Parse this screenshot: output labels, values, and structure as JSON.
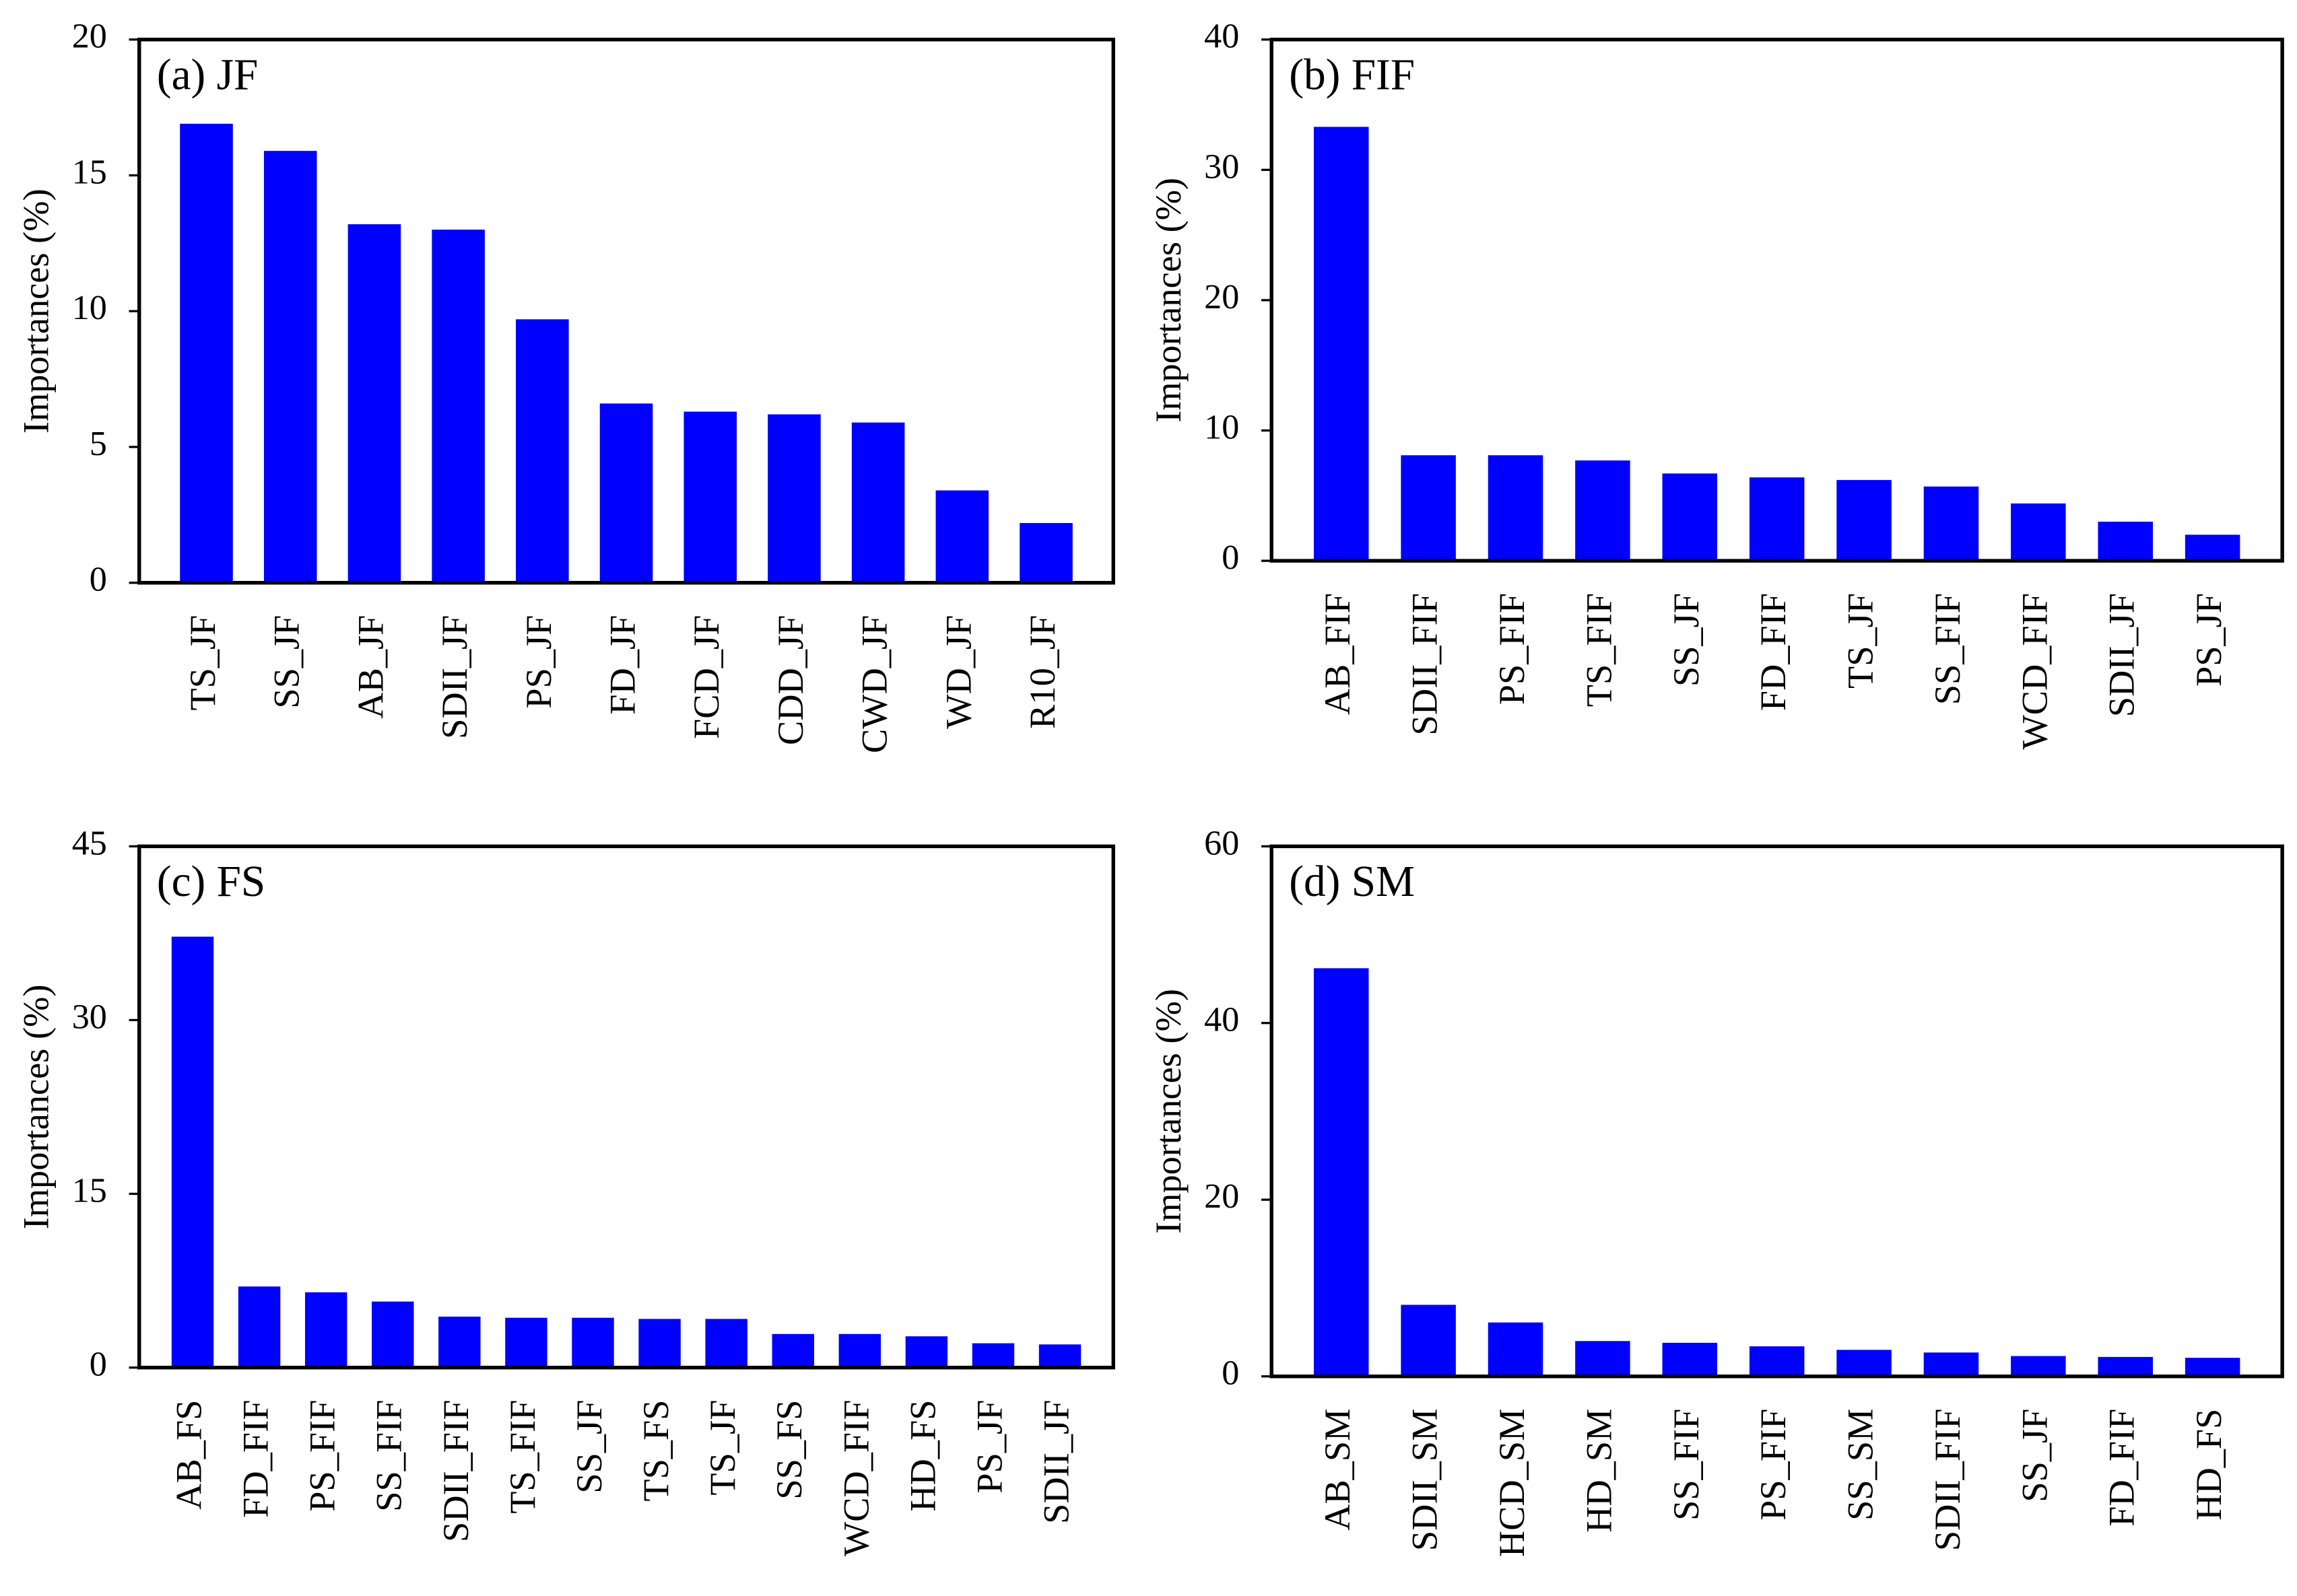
{
  "chart_data": [
    {
      "type": "bar",
      "title": "(a) JF",
      "y_label": "Importances (%)",
      "color": "#0000ff",
      "categories": [
        "TS_JF",
        "SS_JF",
        "AB_JF",
        "SDII_JF",
        "PS_JF",
        "FD_JF",
        "FCD_JF",
        "CDD_JF",
        "CWD_JF",
        "WD_JF",
        "R10_JF"
      ],
      "values": [
        16.9,
        15.9,
        13.2,
        13.0,
        9.7,
        6.6,
        6.3,
        6.2,
        5.9,
        3.4,
        2.2
      ],
      "ylim": [
        0,
        20
      ],
      "yticks": [
        0,
        5,
        10,
        15,
        20
      ]
    },
    {
      "type": "bar",
      "title": "(b) FIF",
      "y_label": "Importances (%)",
      "color": "#0000ff",
      "categories": [
        "AB_FIF",
        "SDII_FIF",
        "PS_FIF",
        "TS_FIF",
        "SS_JF",
        "FD_FIF",
        "TS_JF",
        "SS_FIF",
        "WCD_FIF",
        "SDII_JF",
        "PS_JF"
      ],
      "values": [
        33.3,
        8.1,
        8.1,
        7.7,
        6.7,
        6.4,
        6.2,
        5.7,
        4.4,
        3.0,
        2.0
      ],
      "ylim": [
        0,
        40
      ],
      "yticks": [
        0,
        10,
        20,
        30,
        40
      ]
    },
    {
      "type": "bar",
      "title": "(c) FS",
      "y_label": "Importances (%)",
      "color": "#0000ff",
      "categories": [
        "AB_FS",
        "FD_FIF",
        "PS_FIF",
        "SS_FIF",
        "SDII_FIF",
        "TS_FIF",
        "SS_JF",
        "TS_FS",
        "TS_JF",
        "SS_FS",
        "WCD_FIF",
        "HD_FS",
        "PS_JF",
        "SDII_JF"
      ],
      "values": [
        37.2,
        7.0,
        6.5,
        5.7,
        4.4,
        4.3,
        4.3,
        4.2,
        4.2,
        2.9,
        2.9,
        2.7,
        2.1,
        2.0
      ],
      "ylim": [
        0,
        45
      ],
      "yticks": [
        0,
        15,
        30,
        45
      ]
    },
    {
      "type": "bar",
      "title": "(d) SM",
      "y_label": "Importances (%)",
      "color": "#0000ff",
      "categories": [
        "AB_SM",
        "SDII_SM",
        "HCD_SM",
        "HD_SM",
        "SS_FIF",
        "PS_FIF",
        "SS_SM",
        "SDII_FIF",
        "SS_JF",
        "FD_FIF",
        "HD_FS"
      ],
      "values": [
        46.2,
        8.1,
        6.1,
        4.0,
        3.8,
        3.4,
        3.0,
        2.7,
        2.3,
        2.2,
        2.1
      ],
      "ylim": [
        0,
        60
      ],
      "yticks": [
        0,
        20,
        40,
        60
      ]
    }
  ]
}
